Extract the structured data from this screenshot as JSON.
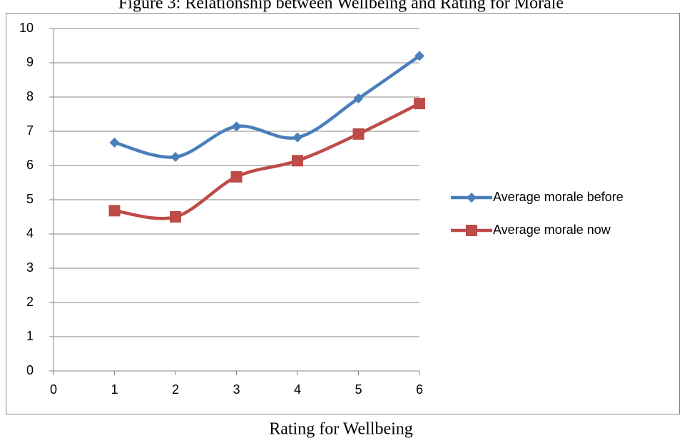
{
  "chart_data": {
    "type": "line",
    "title": "Figure 3: Relationship between Wellbeing and Rating for Morale",
    "x_label": "Rating for Wellbeing",
    "x": [
      1,
      2,
      3,
      4,
      5,
      6
    ],
    "series": [
      {
        "name": "Average morale before",
        "color": "#4a7ebb",
        "marker": "diamond",
        "values": [
          6.67,
          6.25,
          7.14,
          6.82,
          7.96,
          9.2
        ]
      },
      {
        "name": "Average morale now",
        "color": "#be4b48",
        "marker": "square",
        "values": [
          4.68,
          4.5,
          5.67,
          6.14,
          6.92,
          7.81
        ]
      }
    ],
    "xlim": [
      0,
      6
    ],
    "xticks": [
      0,
      1,
      2,
      3,
      4,
      5,
      6
    ],
    "ylim": [
      0,
      10
    ],
    "yticks": [
      0,
      1,
      2,
      3,
      4,
      5,
      6,
      7,
      8,
      9,
      10
    ],
    "grid": true,
    "smooth": true,
    "legend": "right"
  }
}
